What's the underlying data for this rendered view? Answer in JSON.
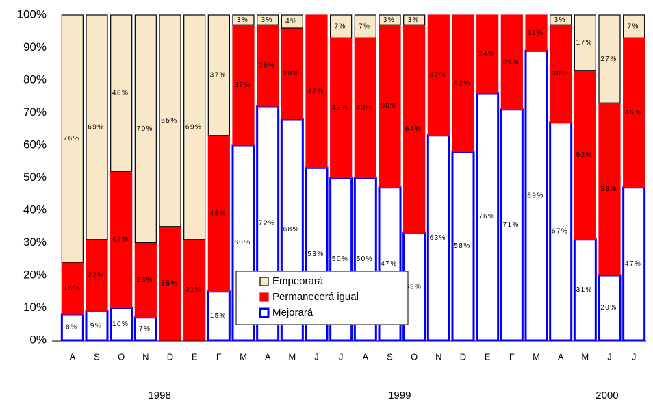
{
  "chart_data": {
    "type": "stacked_bar",
    "categories": [
      "A",
      "S",
      "O",
      "N",
      "D",
      "E",
      "F",
      "M",
      "A",
      "M",
      "J",
      "J",
      "A",
      "S",
      "O",
      "N",
      "D",
      "E",
      "F",
      "M",
      "A",
      "M",
      "J",
      "J"
    ],
    "year_labels": [
      "1998",
      "1999",
      "2000"
    ],
    "series": [
      {
        "name": "Mejorará",
        "color": "#ffffff",
        "edgecolor": "#0000ff",
        "values": [
          8,
          9,
          10,
          7,
          0,
          0,
          15,
          60,
          72,
          68,
          53,
          50,
          50,
          47,
          33,
          63,
          58,
          76,
          71,
          89,
          67,
          31,
          20,
          47
        ],
        "value_labels": [
          "8%",
          "9%",
          "10%",
          "7%",
          null,
          null,
          "15%",
          "60%",
          "72%",
          "68%",
          "53%",
          "50%",
          "50%",
          "47%",
          "33%",
          "63%",
          "58%",
          "76%",
          "71%",
          "89%",
          "67%",
          "31%",
          "20%",
          "47%"
        ]
      },
      {
        "name": "Permanecerá igual",
        "color": "#ff0000",
        "edgecolor": "#ff0000",
        "values": [
          16,
          22,
          42,
          23,
          35,
          31,
          48,
          37,
          25,
          28,
          47,
          43,
          43,
          50,
          64,
          37,
          42,
          24,
          29,
          11,
          30,
          52,
          53,
          46
        ],
        "value_labels": [
          "16%",
          "22%",
          "42%",
          "23%",
          "35%",
          "31%",
          "48%",
          "37%",
          "25%",
          "28%",
          "47%",
          "43%",
          "43%",
          "50%",
          "64%",
          "37%",
          "42%",
          "24%",
          "29%",
          "11%",
          "30%",
          "52%",
          "53%",
          "46%"
        ]
      },
      {
        "name": "Empeorará",
        "color": "#f8e8c8",
        "edgecolor": "#000000",
        "values": [
          76,
          69,
          48,
          70,
          65,
          69,
          37,
          3,
          3,
          4,
          0,
          7,
          7,
          3,
          3,
          0,
          0,
          0,
          0,
          0,
          3,
          17,
          27,
          7
        ],
        "value_labels": [
          "76%",
          "69%",
          "48%",
          "70%",
          "65%",
          "69%",
          "37%",
          "3%",
          "3%",
          "4%",
          null,
          "7%",
          "7%",
          "3%",
          "3%",
          null,
          null,
          null,
          null,
          null,
          "3%",
          "17%",
          "27%",
          "7%"
        ]
      }
    ],
    "ylim": [
      0,
      100
    ],
    "yticks": [
      {
        "value": 0,
        "label": "0%"
      },
      {
        "value": 10,
        "label": "10%"
      },
      {
        "value": 20,
        "label": "20%"
      },
      {
        "value": 30,
        "label": "30%"
      },
      {
        "value": 40,
        "label": "40%"
      },
      {
        "value": 50,
        "label": "50%"
      },
      {
        "value": 60,
        "label": "60%"
      },
      {
        "value": 70,
        "label": "70%"
      },
      {
        "value": 80,
        "label": "80%"
      },
      {
        "value": 90,
        "label": "90%"
      },
      {
        "value": 100,
        "label": "100%"
      }
    ],
    "grid": false
  }
}
